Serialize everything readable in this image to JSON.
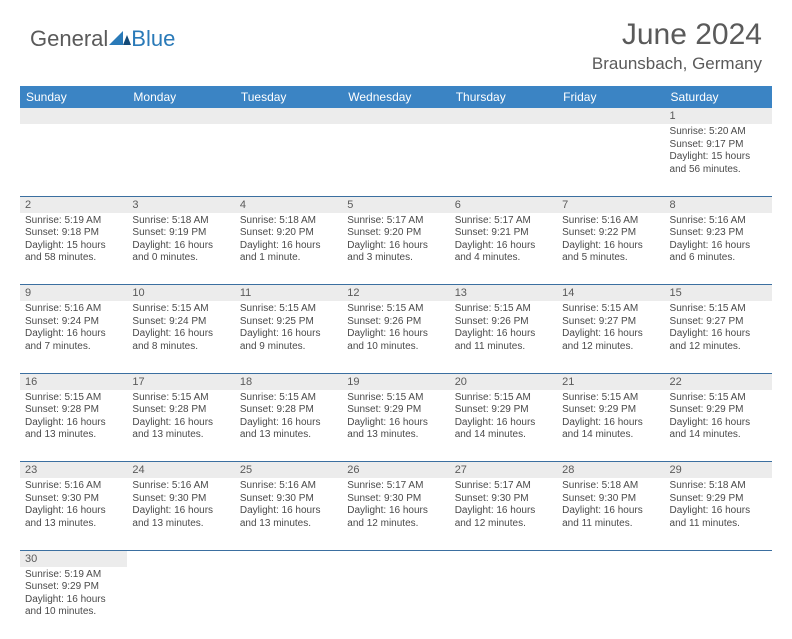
{
  "logo": {
    "text_dark": "General",
    "text_blue": "Blue"
  },
  "title": "June 2024",
  "location": "Braunsbach, Germany",
  "colors": {
    "header_bg": "#3b84c4",
    "header_text": "#ffffff",
    "daynum_bg": "#ececec",
    "text_gray": "#5a5a5a",
    "divider": "#3b6fa0",
    "logo_blue": "#2a7ab8"
  },
  "day_headers": [
    "Sunday",
    "Monday",
    "Tuesday",
    "Wednesday",
    "Thursday",
    "Friday",
    "Saturday"
  ],
  "weeks": [
    [
      null,
      null,
      null,
      null,
      null,
      null,
      {
        "d": "1",
        "sr": "5:20 AM",
        "ss": "9:17 PM",
        "dl": "15 hours and 56 minutes."
      }
    ],
    [
      {
        "d": "2",
        "sr": "5:19 AM",
        "ss": "9:18 PM",
        "dl": "15 hours and 58 minutes."
      },
      {
        "d": "3",
        "sr": "5:18 AM",
        "ss": "9:19 PM",
        "dl": "16 hours and 0 minutes."
      },
      {
        "d": "4",
        "sr": "5:18 AM",
        "ss": "9:20 PM",
        "dl": "16 hours and 1 minute."
      },
      {
        "d": "5",
        "sr": "5:17 AM",
        "ss": "9:20 PM",
        "dl": "16 hours and 3 minutes."
      },
      {
        "d": "6",
        "sr": "5:17 AM",
        "ss": "9:21 PM",
        "dl": "16 hours and 4 minutes."
      },
      {
        "d": "7",
        "sr": "5:16 AM",
        "ss": "9:22 PM",
        "dl": "16 hours and 5 minutes."
      },
      {
        "d": "8",
        "sr": "5:16 AM",
        "ss": "9:23 PM",
        "dl": "16 hours and 6 minutes."
      }
    ],
    [
      {
        "d": "9",
        "sr": "5:16 AM",
        "ss": "9:24 PM",
        "dl": "16 hours and 7 minutes."
      },
      {
        "d": "10",
        "sr": "5:15 AM",
        "ss": "9:24 PM",
        "dl": "16 hours and 8 minutes."
      },
      {
        "d": "11",
        "sr": "5:15 AM",
        "ss": "9:25 PM",
        "dl": "16 hours and 9 minutes."
      },
      {
        "d": "12",
        "sr": "5:15 AM",
        "ss": "9:26 PM",
        "dl": "16 hours and 10 minutes."
      },
      {
        "d": "13",
        "sr": "5:15 AM",
        "ss": "9:26 PM",
        "dl": "16 hours and 11 minutes."
      },
      {
        "d": "14",
        "sr": "5:15 AM",
        "ss": "9:27 PM",
        "dl": "16 hours and 12 minutes."
      },
      {
        "d": "15",
        "sr": "5:15 AM",
        "ss": "9:27 PM",
        "dl": "16 hours and 12 minutes."
      }
    ],
    [
      {
        "d": "16",
        "sr": "5:15 AM",
        "ss": "9:28 PM",
        "dl": "16 hours and 13 minutes."
      },
      {
        "d": "17",
        "sr": "5:15 AM",
        "ss": "9:28 PM",
        "dl": "16 hours and 13 minutes."
      },
      {
        "d": "18",
        "sr": "5:15 AM",
        "ss": "9:28 PM",
        "dl": "16 hours and 13 minutes."
      },
      {
        "d": "19",
        "sr": "5:15 AM",
        "ss": "9:29 PM",
        "dl": "16 hours and 13 minutes."
      },
      {
        "d": "20",
        "sr": "5:15 AM",
        "ss": "9:29 PM",
        "dl": "16 hours and 14 minutes."
      },
      {
        "d": "21",
        "sr": "5:15 AM",
        "ss": "9:29 PM",
        "dl": "16 hours and 14 minutes."
      },
      {
        "d": "22",
        "sr": "5:15 AM",
        "ss": "9:29 PM",
        "dl": "16 hours and 14 minutes."
      }
    ],
    [
      {
        "d": "23",
        "sr": "5:16 AM",
        "ss": "9:30 PM",
        "dl": "16 hours and 13 minutes."
      },
      {
        "d": "24",
        "sr": "5:16 AM",
        "ss": "9:30 PM",
        "dl": "16 hours and 13 minutes."
      },
      {
        "d": "25",
        "sr": "5:16 AM",
        "ss": "9:30 PM",
        "dl": "16 hours and 13 minutes."
      },
      {
        "d": "26",
        "sr": "5:17 AM",
        "ss": "9:30 PM",
        "dl": "16 hours and 12 minutes."
      },
      {
        "d": "27",
        "sr": "5:17 AM",
        "ss": "9:30 PM",
        "dl": "16 hours and 12 minutes."
      },
      {
        "d": "28",
        "sr": "5:18 AM",
        "ss": "9:30 PM",
        "dl": "16 hours and 11 minutes."
      },
      {
        "d": "29",
        "sr": "5:18 AM",
        "ss": "9:29 PM",
        "dl": "16 hours and 11 minutes."
      }
    ],
    [
      {
        "d": "30",
        "sr": "5:19 AM",
        "ss": "9:29 PM",
        "dl": "16 hours and 10 minutes."
      },
      null,
      null,
      null,
      null,
      null,
      null
    ]
  ],
  "labels": {
    "sunrise": "Sunrise: ",
    "sunset": "Sunset: ",
    "daylight": "Daylight: "
  }
}
